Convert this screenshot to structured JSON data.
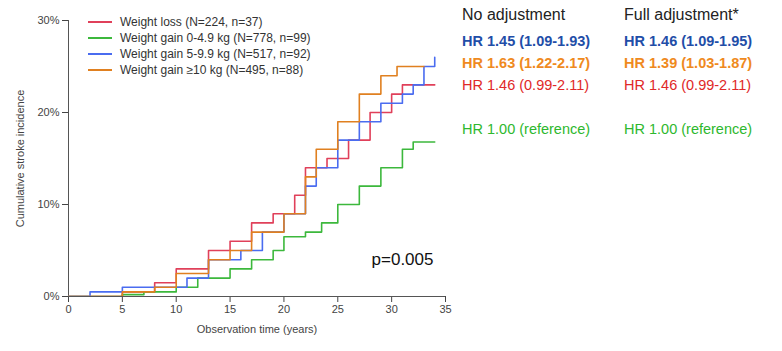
{
  "chart_data": {
    "type": "line",
    "x_label": "Observation time (years)",
    "y_label": "Cumulative stroke incidence",
    "xlim": [
      0,
      35
    ],
    "xticks": [
      0,
      5,
      10,
      15,
      20,
      25,
      30,
      35
    ],
    "ylim": [
      0,
      30
    ],
    "yticks": [
      {
        "value": 0,
        "label": "0%"
      },
      {
        "value": 10,
        "label": "10%"
      },
      {
        "value": 20,
        "label": "20%"
      },
      {
        "value": 30,
        "label": "30%"
      }
    ],
    "line_style": "step",
    "series": [
      {
        "name": "Weight loss (N=224, n=37)",
        "color": "#e0405a",
        "x": [
          0,
          5,
          8,
          10,
          13,
          15,
          17,
          19,
          21,
          22,
          24,
          26,
          28,
          30,
          31,
          34
        ],
        "values": [
          0,
          0.5,
          1.5,
          3,
          5,
          6,
          8,
          9,
          11,
          14,
          15,
          17,
          20,
          22,
          23,
          23
        ]
      },
      {
        "name": "Weight gain 0-4.9 kg (N=778, n=99)",
        "color": "#3cb83c",
        "x": [
          0,
          5,
          7,
          10,
          12,
          15,
          17,
          19,
          20,
          22,
          23.5,
          25,
          27,
          29,
          31,
          32,
          34
        ],
        "values": [
          0,
          0.2,
          0.5,
          1,
          2,
          3,
          4,
          5,
          6.5,
          7,
          8,
          10,
          12,
          14,
          16,
          16.8,
          16.8
        ]
      },
      {
        "name": "Weight gain 5-9.9 kg (N=517, n=92)",
        "color": "#4a6cf0",
        "x": [
          0,
          2,
          5,
          8,
          11,
          13,
          16,
          18,
          20,
          22,
          23,
          25,
          27,
          29,
          31,
          32,
          33,
          34
        ],
        "values": [
          0,
          0.5,
          1,
          1,
          2,
          4,
          5,
          7,
          9,
          12,
          14,
          17,
          19,
          21,
          22,
          23,
          25,
          26
        ]
      },
      {
        "name": "Weight gain ≥10 kg (N=495, n=88)",
        "color": "#e08020",
        "x": [
          0,
          5,
          8,
          10,
          13,
          15,
          17,
          20,
          22,
          23,
          25,
          27,
          29,
          30.5,
          33
        ],
        "values": [
          0,
          0.5,
          1,
          2.5,
          4,
          5,
          7,
          9,
          13,
          16,
          19,
          22,
          24,
          25,
          25
        ]
      }
    ],
    "annotations": {
      "p_value": "p=0.005",
      "columns": [
        "No adjustment",
        "Full adjustment*"
      ],
      "rows": [
        {
          "color": "#1f4ea8",
          "values": [
            "HR 1.45 (1.09-1.93)",
            "HR 1.46 (1.09-1.95)"
          ]
        },
        {
          "color": "#ef8a1e",
          "values": [
            "HR 1.63 (1.22-2.17)",
            "HR 1.39 (1.03-1.87)"
          ]
        },
        {
          "color": "#e02828",
          "values": [
            "HR 1.46 (0.99-2.11)",
            "HR 1.46 (0.99-2.11)"
          ]
        },
        {
          "color": "#2eb82e",
          "values": [
            "HR 1.00 (reference)",
            "HR 1.00 (reference)"
          ]
        }
      ]
    }
  }
}
